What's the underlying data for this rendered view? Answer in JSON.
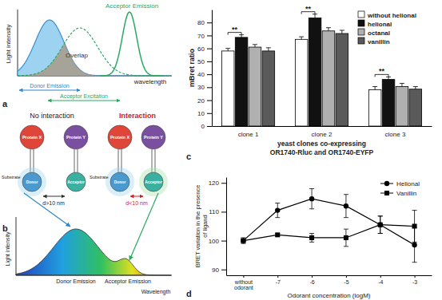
{
  "diagram_a": {
    "label": "a",
    "y_label": "Light intensity",
    "x_label": "wavelength",
    "overlap": "Overlap",
    "donor_emission": "Donor Emission",
    "acceptor_excitation": "Acceptor Excitation",
    "acceptor_emission": "Acceptor Emission"
  },
  "diagram_b": {
    "label": "b",
    "no_interaction": "No interaction",
    "interaction": "Interaction",
    "protein_x": "Protein X",
    "protein_y": "Protein Y",
    "substrate": "Substrate",
    "donor": "Donor",
    "acceptor": "Acceptor",
    "far": "d>10 nm",
    "near": "d<10 nm",
    "y_label": "Light intensity",
    "x_label": "Wavelength",
    "donor_emission": "Donor Emission",
    "acceptor_emission": "Acceptor Emission"
  },
  "chart_data": [
    {
      "type": "bar",
      "title": "c",
      "y_label": "mBret ratio",
      "x_label": [
        "yeast clones co-expressing",
        "OR1740-Rluc and OR1740-EYFP"
      ],
      "categories": [
        "clone 1",
        "clone 2",
        "clone 3"
      ],
      "series": [
        {
          "name": "without helional",
          "color": "#ffffff",
          "values": [
            58,
            67,
            28
          ],
          "errors": [
            2,
            2,
            2.5
          ]
        },
        {
          "name": "helional",
          "color": "#111111",
          "values": [
            68.5,
            83.5,
            36
          ],
          "errors": [
            2,
            3,
            2
          ]
        },
        {
          "name": "octanal",
          "color": "#b0b0b0",
          "values": [
            61,
            73.5,
            30.5
          ],
          "errors": [
            2,
            2.5,
            2.5
          ]
        },
        {
          "name": "vanillin",
          "color": "#5a5a5a",
          "values": [
            58,
            71.5,
            28.5
          ],
          "errors": [
            2.5,
            2.5,
            2
          ]
        }
      ],
      "annotations": [
        {
          "text": "**",
          "x": "clone 1",
          "between": [
            "without helional",
            "helional"
          ]
        },
        {
          "text": "**",
          "x": "clone 2",
          "between": [
            "without helional",
            "helional"
          ]
        },
        {
          "text": "**",
          "x": "clone 3",
          "between": [
            "without helional",
            "helional"
          ]
        }
      ],
      "ylim": [
        0,
        90
      ],
      "yticks": [
        0,
        10,
        20,
        30,
        40,
        50,
        60,
        70,
        80
      ],
      "legend": "upper right"
    },
    {
      "type": "line",
      "title": "d",
      "y_label": [
        "BRET variation in the presence",
        "of ligand"
      ],
      "x_label": "Odorant concentration (logM)",
      "categories": [
        "without odorant",
        "-7",
        "-6",
        "-5",
        "-4",
        "-3"
      ],
      "series": [
        {
          "name": "Helional",
          "color": "#000000",
          "marker": "circle",
          "values": [
            100,
            110.5,
            114.5,
            112,
            105.5,
            98.5
          ],
          "errors": [
            1,
            2.5,
            3.5,
            4,
            3,
            6
          ]
        },
        {
          "name": "Vanillin",
          "color": "#000000",
          "marker": "square",
          "values": [
            100,
            102,
            101,
            101,
            105.5,
            105
          ],
          "errors": [
            0.5,
            0.5,
            1.5,
            3,
            3,
            5.5
          ]
        }
      ],
      "ylim": [
        88,
        122
      ],
      "yticks": [
        90,
        100,
        110,
        120
      ],
      "legend": "upper right"
    }
  ]
}
